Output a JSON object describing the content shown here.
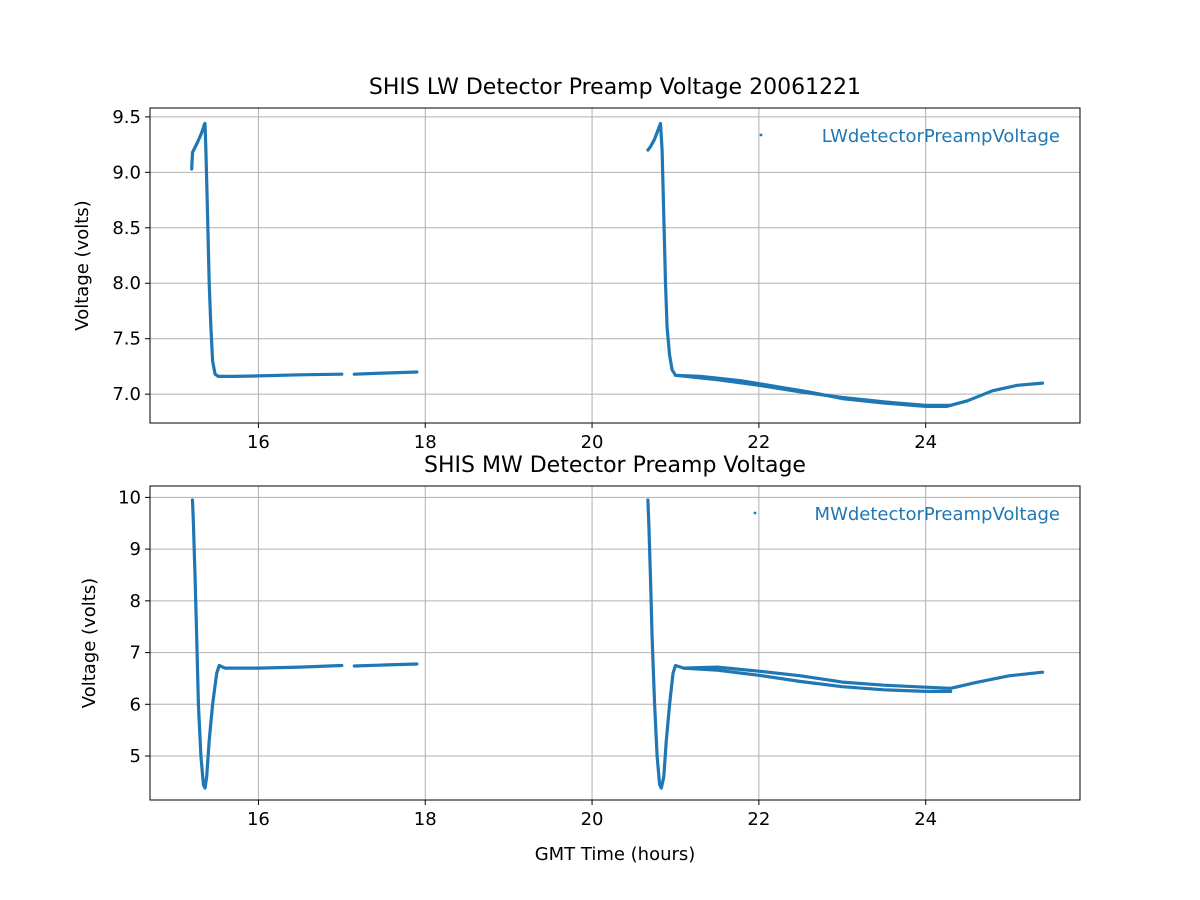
{
  "chart_data": [
    {
      "type": "line",
      "title": "SHIS LW Detector Preamp Voltage 20061221",
      "xlabel": "",
      "ylabel": "Voltage (volts)",
      "xlim": [
        14.7,
        25.85
      ],
      "ylim": [
        6.74,
        9.58
      ],
      "xticks": [
        16,
        18,
        20,
        22,
        24
      ],
      "yticks": [
        7.0,
        7.5,
        8.0,
        8.5,
        9.0,
        9.5
      ],
      "ytick_labels": [
        "7.0",
        "7.5",
        "8.0",
        "8.5",
        "9.0",
        "9.5"
      ],
      "grid": true,
      "legend_position": "top-right",
      "color": "#1f77b4",
      "series": [
        {
          "name": "LWdetectorPreampVoltage",
          "segments": [
            [
              [
                15.2,
                9.03
              ],
              [
                15.21,
                9.18
              ],
              [
                15.23,
                9.21
              ],
              [
                15.27,
                9.27
              ],
              [
                15.31,
                9.34
              ],
              [
                15.34,
                9.4
              ],
              [
                15.35,
                9.43
              ],
              [
                15.36,
                9.44
              ],
              [
                15.37,
                9.2
              ],
              [
                15.39,
                8.6
              ],
              [
                15.41,
                8.0
              ],
              [
                15.43,
                7.6
              ],
              [
                15.45,
                7.3
              ],
              [
                15.48,
                7.18
              ],
              [
                15.52,
                7.16
              ],
              [
                15.7,
                7.16
              ],
              [
                16.0,
                7.165
              ],
              [
                16.5,
                7.175
              ],
              [
                17.0,
                7.18
              ]
            ],
            [
              [
                17.15,
                7.18
              ],
              [
                17.5,
                7.19
              ],
              [
                17.9,
                7.2
              ]
            ],
            [
              [
                20.67,
                9.2
              ],
              [
                20.7,
                9.23
              ],
              [
                20.75,
                9.3
              ],
              [
                20.8,
                9.4
              ],
              [
                20.82,
                9.44
              ],
              [
                20.84,
                9.2
              ],
              [
                20.86,
                8.6
              ],
              [
                20.88,
                8.0
              ],
              [
                20.9,
                7.6
              ],
              [
                20.93,
                7.35
              ],
              [
                20.96,
                7.22
              ],
              [
                21.0,
                7.17
              ],
              [
                21.3,
                7.16
              ],
              [
                21.8,
                7.12
              ],
              [
                22.2,
                7.07
              ],
              [
                22.6,
                7.02
              ],
              [
                23.0,
                6.96
              ],
              [
                23.5,
                6.92
              ],
              [
                24.0,
                6.89
              ],
              [
                24.25,
                6.89
              ],
              [
                24.5,
                6.94
              ],
              [
                24.8,
                7.03
              ],
              [
                25.1,
                7.08
              ],
              [
                25.4,
                7.1
              ]
            ],
            [
              [
                21.0,
                7.17
              ],
              [
                21.5,
                7.13
              ],
              [
                22.0,
                7.08
              ],
              [
                22.5,
                7.02
              ],
              [
                23.0,
                6.97
              ],
              [
                23.5,
                6.93
              ],
              [
                24.0,
                6.9
              ],
              [
                24.3,
                6.9
              ]
            ]
          ]
        }
      ]
    },
    {
      "type": "line",
      "title": "SHIS MW Detector Preamp Voltage",
      "xlabel": "GMT Time (hours)",
      "ylabel": "Voltage (volts)",
      "xlim": [
        14.7,
        25.85
      ],
      "ylim": [
        4.15,
        10.22
      ],
      "xticks": [
        16,
        18,
        20,
        22,
        24
      ],
      "yticks": [
        5,
        6,
        7,
        8,
        9,
        10
      ],
      "ytick_labels": [
        "5",
        "6",
        "7",
        "8",
        "9",
        "10"
      ],
      "grid": true,
      "legend_position": "top-right",
      "color": "#1f77b4",
      "series": [
        {
          "name": "MWdetectorPreampVoltage",
          "segments": [
            [
              [
                15.21,
                9.95
              ],
              [
                15.22,
                9.5
              ],
              [
                15.24,
                8.5
              ],
              [
                15.26,
                7.3
              ],
              [
                15.28,
                6.0
              ],
              [
                15.31,
                5.0
              ],
              [
                15.34,
                4.45
              ],
              [
                15.36,
                4.38
              ],
              [
                15.38,
                4.6
              ],
              [
                15.41,
                5.3
              ],
              [
                15.45,
                6.0
              ],
              [
                15.5,
                6.6
              ],
              [
                15.53,
                6.75
              ],
              [
                15.6,
                6.7
              ],
              [
                16.0,
                6.7
              ],
              [
                16.5,
                6.72
              ],
              [
                17.0,
                6.75
              ]
            ],
            [
              [
                17.15,
                6.74
              ],
              [
                17.5,
                6.76
              ],
              [
                17.9,
                6.78
              ]
            ],
            [
              [
                20.67,
                9.95
              ],
              [
                20.68,
                9.5
              ],
              [
                20.7,
                8.5
              ],
              [
                20.72,
                7.3
              ],
              [
                20.75,
                6.0
              ],
              [
                20.78,
                5.0
              ],
              [
                20.81,
                4.45
              ],
              [
                20.83,
                4.38
              ],
              [
                20.86,
                4.6
              ],
              [
                20.89,
                5.3
              ],
              [
                20.93,
                6.0
              ],
              [
                20.97,
                6.6
              ],
              [
                21.0,
                6.75
              ],
              [
                21.1,
                6.7
              ],
              [
                21.5,
                6.72
              ],
              [
                22.0,
                6.64
              ],
              [
                22.5,
                6.55
              ],
              [
                23.0,
                6.43
              ],
              [
                23.5,
                6.37
              ],
              [
                24.0,
                6.33
              ],
              [
                24.3,
                6.31
              ],
              [
                24.6,
                6.42
              ],
              [
                25.0,
                6.55
              ],
              [
                25.4,
                6.62
              ]
            ],
            [
              [
                21.1,
                6.7
              ],
              [
                21.5,
                6.66
              ],
              [
                22.0,
                6.56
              ],
              [
                22.5,
                6.44
              ],
              [
                23.0,
                6.34
              ],
              [
                23.5,
                6.28
              ],
              [
                24.0,
                6.25
              ],
              [
                24.3,
                6.25
              ]
            ]
          ]
        }
      ]
    }
  ]
}
